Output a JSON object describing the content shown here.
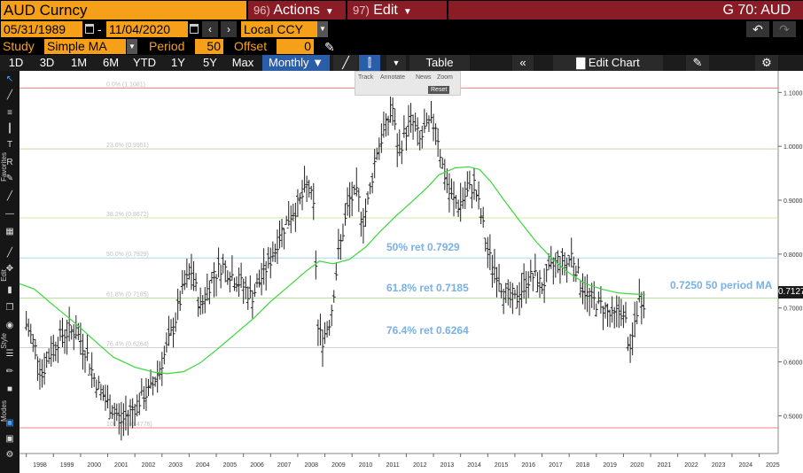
{
  "header": {
    "security": "AUD Curncy",
    "actions_num": "96)",
    "actions_label": "Actions",
    "edit_num": "97)",
    "edit_label": "Edit",
    "title": "G 70: AUD"
  },
  "controls": {
    "start_date": "05/31/1989",
    "end_date": "11/04/2020",
    "currency": "Local CCY",
    "study_label": "Study",
    "study_value": "Simple MA",
    "period_label": "Period",
    "period_value": "50",
    "offset_label": "Offset",
    "offset_value": "0"
  },
  "toolbar": {
    "ranges": [
      "1D",
      "3D",
      "1M",
      "6M",
      "YTD",
      "1Y",
      "5Y",
      "Max"
    ],
    "frequency": "Monthly",
    "table_label": "Table",
    "edit_chart_label": "Edit Chart"
  },
  "left_toolbar": {
    "favorites_label": "Favorites",
    "edit_label": "Edit",
    "style_label": "Style",
    "modes_label": "Modes"
  },
  "mini_toolbar": {
    "track": "Track",
    "annotate": "Annotate",
    "news": "News",
    "zoom": "Zoom",
    "reset": "Reset"
  },
  "annotations": {
    "fib_50": "50% ret 0.7929",
    "fib_618": "61.8% ret 0.7185",
    "fib_764": "76.4% ret 0.6264",
    "ma_label": "0.7250 50 period MA",
    "last_value": "0.7127"
  },
  "colors": {
    "accent_orange": "#f6a01a",
    "header_red": "#8a1c26",
    "ma_green": "#3ad63a",
    "annotation_blue": "#79b0e6"
  },
  "chart_data": {
    "type": "bar",
    "x_ticks": [
      "1998",
      "1999",
      "2000",
      "2001",
      "2002",
      "2003",
      "2004",
      "2005",
      "2006",
      "2007",
      "2008",
      "2009",
      "2010",
      "2011",
      "2012",
      "2013",
      "2014",
      "2015",
      "2016",
      "2017",
      "2018",
      "2019",
      "2020",
      "2021",
      "2022",
      "2023",
      "2024",
      "2025"
    ],
    "y_ticks": [
      "1.1000",
      "1.0000",
      "0.9000",
      "0.8000",
      "0.7000",
      "0.6000",
      "0.5000"
    ],
    "ylim": [
      0.43,
      1.14
    ],
    "fib_levels": [
      {
        "label": "0.0% (1.1081)",
        "value": 1.1081,
        "color": "#f08080"
      },
      {
        "label": "23.6% (0.9951)",
        "value": 0.9951,
        "color": "#c8d8a8"
      },
      {
        "label": "38.2% (0.8672)",
        "value": 0.8672,
        "color": "#c8e8a8"
      },
      {
        "label": "50.0% (0.7929)",
        "value": 0.7929,
        "color": "#a8d8f0"
      },
      {
        "label": "61.8% (0.7185)",
        "value": 0.7185,
        "color": "#b8e0a0"
      },
      {
        "label": "76.4% (0.6264)",
        "value": 0.6264,
        "color": "#d0d0d0"
      },
      {
        "label": "100.0% (0.4776)",
        "value": 0.4776,
        "color": "#f08080"
      }
    ],
    "price_path": [
      [
        1998.0,
        0.67
      ],
      [
        1998.3,
        0.63
      ],
      [
        1998.6,
        0.58
      ],
      [
        1998.9,
        0.62
      ],
      [
        1999.3,
        0.65
      ],
      [
        1999.8,
        0.66
      ],
      [
        2000.2,
        0.62
      ],
      [
        2000.5,
        0.57
      ],
      [
        2000.9,
        0.53
      ],
      [
        2001.2,
        0.51
      ],
      [
        2001.5,
        0.49
      ],
      [
        2001.9,
        0.51
      ],
      [
        2002.2,
        0.53
      ],
      [
        2002.6,
        0.55
      ],
      [
        2003.0,
        0.6
      ],
      [
        2003.4,
        0.66
      ],
      [
        2003.8,
        0.74
      ],
      [
        2004.1,
        0.77
      ],
      [
        2004.4,
        0.7
      ],
      [
        2004.8,
        0.75
      ],
      [
        2005.2,
        0.78
      ],
      [
        2005.6,
        0.76
      ],
      [
        2006.0,
        0.74
      ],
      [
        2006.3,
        0.72
      ],
      [
        2006.7,
        0.76
      ],
      [
        2007.0,
        0.79
      ],
      [
        2007.3,
        0.83
      ],
      [
        2007.7,
        0.87
      ],
      [
        2008.0,
        0.89
      ],
      [
        2008.4,
        0.93
      ],
      [
        2008.6,
        0.88
      ],
      [
        2008.75,
        0.66
      ],
      [
        2008.9,
        0.64
      ],
      [
        2009.2,
        0.68
      ],
      [
        2009.5,
        0.8
      ],
      [
        2009.9,
        0.9
      ],
      [
        2010.2,
        0.91
      ],
      [
        2010.4,
        0.86
      ],
      [
        2010.6,
        0.9
      ],
      [
        2010.9,
        0.99
      ],
      [
        2011.2,
        1.03
      ],
      [
        2011.5,
        1.07
      ],
      [
        2011.7,
        0.98
      ],
      [
        2011.9,
        1.02
      ],
      [
        2012.2,
        1.05
      ],
      [
        2012.5,
        1.01
      ],
      [
        2012.8,
        1.04
      ],
      [
        2013.1,
        1.04
      ],
      [
        2013.3,
        0.97
      ],
      [
        2013.6,
        0.91
      ],
      [
        2013.9,
        0.89
      ],
      [
        2014.2,
        0.91
      ],
      [
        2014.5,
        0.93
      ],
      [
        2014.8,
        0.86
      ],
      [
        2015.0,
        0.8
      ],
      [
        2015.3,
        0.77
      ],
      [
        2015.6,
        0.73
      ],
      [
        2015.9,
        0.71
      ],
      [
        2016.1,
        0.72
      ],
      [
        2016.4,
        0.75
      ],
      [
        2016.7,
        0.76
      ],
      [
        2017.0,
        0.74
      ],
      [
        2017.3,
        0.77
      ],
      [
        2017.6,
        0.79
      ],
      [
        2017.9,
        0.78
      ],
      [
        2018.1,
        0.8
      ],
      [
        2018.4,
        0.75
      ],
      [
        2018.7,
        0.72
      ],
      [
        2019.0,
        0.71
      ],
      [
        2019.3,
        0.7
      ],
      [
        2019.6,
        0.68
      ],
      [
        2019.9,
        0.7
      ],
      [
        2020.1,
        0.67
      ],
      [
        2020.25,
        0.61
      ],
      [
        2020.4,
        0.67
      ],
      [
        2020.6,
        0.72
      ],
      [
        2020.8,
        0.71
      ]
    ],
    "ma_path": [
      [
        1997.75,
        0.745
      ],
      [
        1998.3,
        0.735
      ],
      [
        1999.0,
        0.705
      ],
      [
        1999.8,
        0.672
      ],
      [
        2000.5,
        0.64
      ],
      [
        2001.2,
        0.609
      ],
      [
        2002.0,
        0.59
      ],
      [
        2002.7,
        0.581
      ],
      [
        2003.2,
        0.578
      ],
      [
        2003.8,
        0.582
      ],
      [
        2004.4,
        0.598
      ],
      [
        2005.0,
        0.622
      ],
      [
        2005.7,
        0.652
      ],
      [
        2006.4,
        0.682
      ],
      [
        2007.0,
        0.712
      ],
      [
        2007.7,
        0.742
      ],
      [
        2008.3,
        0.768
      ],
      [
        2008.8,
        0.787
      ],
      [
        2009.3,
        0.782
      ],
      [
        2009.9,
        0.79
      ],
      [
        2010.5,
        0.813
      ],
      [
        2011.0,
        0.84
      ],
      [
        2011.6,
        0.87
      ],
      [
        2012.2,
        0.897
      ],
      [
        2012.8,
        0.925
      ],
      [
        2013.2,
        0.947
      ],
      [
        2013.8,
        0.96
      ],
      [
        2014.3,
        0.962
      ],
      [
        2014.7,
        0.957
      ],
      [
        2015.1,
        0.935
      ],
      [
        2015.6,
        0.9
      ],
      [
        2016.2,
        0.86
      ],
      [
        2016.8,
        0.822
      ],
      [
        2017.4,
        0.79
      ],
      [
        2018.0,
        0.765
      ],
      [
        2018.6,
        0.745
      ],
      [
        2019.2,
        0.735
      ],
      [
        2019.8,
        0.728
      ],
      [
        2020.3,
        0.726
      ],
      [
        2020.8,
        0.725
      ]
    ],
    "x_range": [
      1997.75,
      2025.7
    ]
  }
}
